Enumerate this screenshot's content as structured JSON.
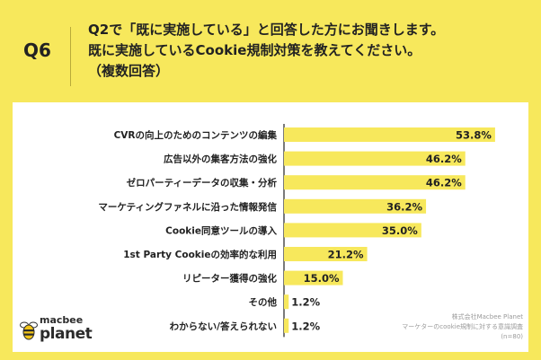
{
  "header": {
    "question_number": "Q6",
    "question_lines": [
      "Q2で「既に実施している」と回答した方にお聞きします。",
      "既に実施しているCookie規制対策を教えてください。",
      "（複数回答）"
    ]
  },
  "brand": {
    "line1": "macbee",
    "line2": "planet"
  },
  "source": {
    "company": "株式会社Macbee Planet",
    "survey": "マーケターのcookie規制に対する意識調査",
    "sample": "(n=80)"
  },
  "colors": {
    "bar": "#f7e85c",
    "axis": "#333333",
    "text": "#222222"
  },
  "chart_data": {
    "type": "bar",
    "orientation": "horizontal",
    "title": "",
    "xlabel": "",
    "ylabel": "",
    "unit": "%",
    "xlim": [
      0,
      60
    ],
    "categories": [
      "CVRの向上のためのコンテンツの編集",
      "広告以外の集客方法の強化",
      "ゼロパーティーデータの収集・分析",
      "マーケティングファネルに沿った情報発信",
      "Cookie同意ツールの導入",
      "1st Party Cookieの効率的な利用",
      "リピーター獲得の強化",
      "その他",
      "わからない/答えられない"
    ],
    "values": [
      53.8,
      46.2,
      46.2,
      36.2,
      35.0,
      21.2,
      15.0,
      1.2,
      1.2
    ],
    "value_labels": [
      "53.8%",
      "46.2%",
      "46.2%",
      "36.2%",
      "35.0%",
      "21.2%",
      "15.0%",
      "1.2%",
      "1.2%"
    ]
  }
}
